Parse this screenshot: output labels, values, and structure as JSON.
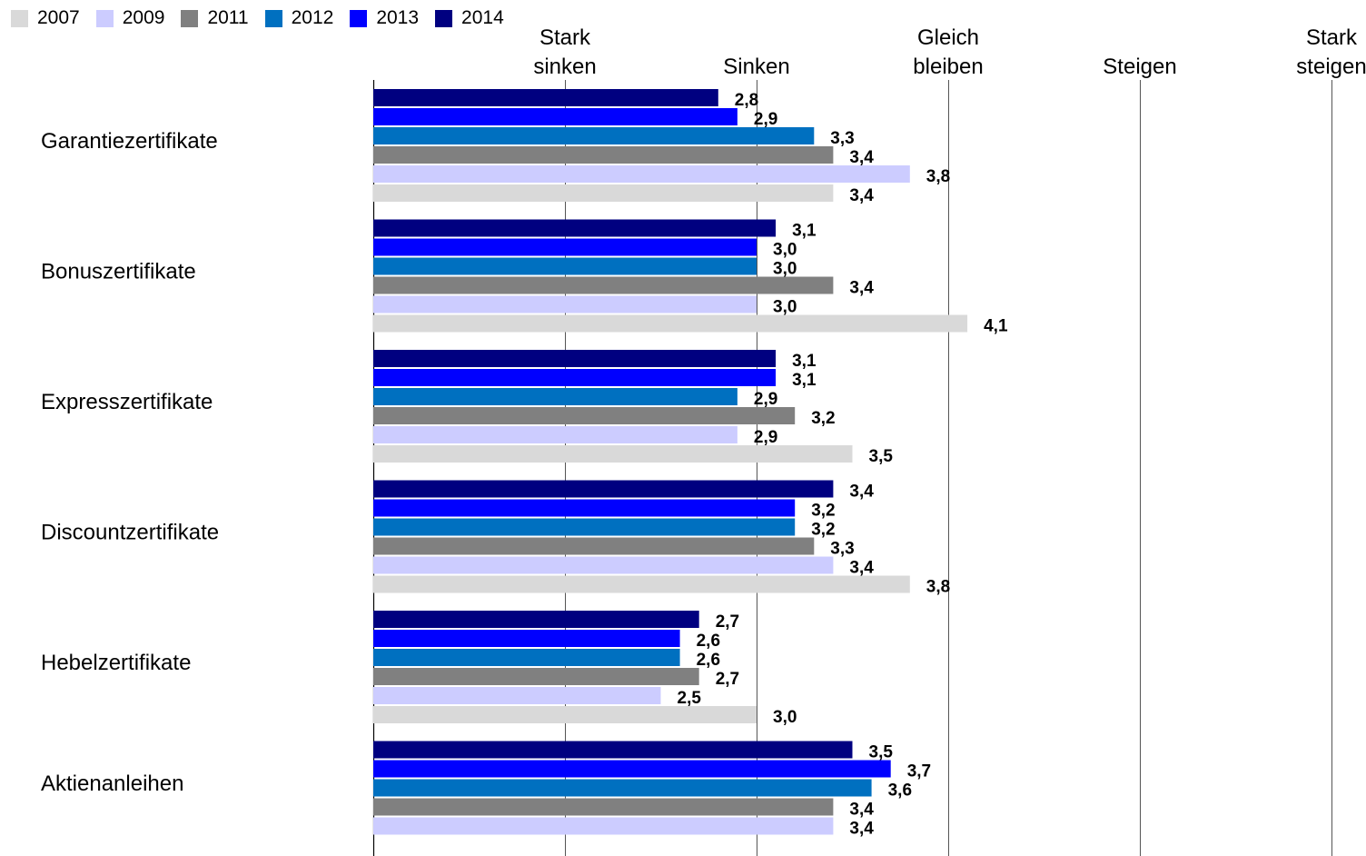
{
  "chart_data": {
    "type": "bar",
    "orientation": "horizontal",
    "title": "",
    "xlabel": "",
    "ylabel": "",
    "xlim": [
      1,
      5
    ],
    "grid": true,
    "legend_position": "top-left",
    "x_tick_labels": [
      {
        "value": 1,
        "lines": [
          "",
          ""
        ]
      },
      {
        "value": 2,
        "lines": [
          "Stark",
          "sinken"
        ]
      },
      {
        "value": 3,
        "lines": [
          "",
          "Sinken"
        ]
      },
      {
        "value": 4,
        "lines": [
          "Gleich",
          "bleiben"
        ]
      },
      {
        "value": 5,
        "lines": [
          "",
          "Steigen"
        ]
      },
      {
        "value": 6,
        "lines": [
          "Stark",
          "steigen"
        ]
      }
    ],
    "categories": [
      "Garantiezertifikate",
      "Bonuszertifikate",
      "Expresszertifikate",
      "Discountzertifikate",
      "Hebelzertifikate",
      "Aktienanleihen"
    ],
    "series": [
      {
        "name": "2014",
        "color": "#000080",
        "values": [
          2.8,
          3.1,
          3.1,
          3.4,
          2.7,
          3.5
        ],
        "labels": [
          "2,8",
          "3,1",
          "3,1",
          "3,4",
          "2,7",
          "3,5"
        ]
      },
      {
        "name": "2013",
        "color": "#0000FF",
        "values": [
          2.9,
          3.0,
          3.1,
          3.2,
          2.6,
          3.7
        ],
        "labels": [
          "2,9",
          "3,0",
          "3,1",
          "3,2",
          "2,6",
          "3,7"
        ]
      },
      {
        "name": "2012",
        "color": "#0070C0",
        "values": [
          3.3,
          3.0,
          2.9,
          3.2,
          2.6,
          3.6
        ],
        "labels": [
          "3,3",
          "3,0",
          "2,9",
          "3,2",
          "2,6",
          "3,6"
        ]
      },
      {
        "name": "2011",
        "color": "#808080",
        "values": [
          3.4,
          3.4,
          3.2,
          3.3,
          2.7,
          3.4
        ],
        "labels": [
          "3,4",
          "3,4",
          "3,2",
          "3,3",
          "2,7",
          "3,4"
        ]
      },
      {
        "name": "2009",
        "color": "#CCCCFF",
        "values": [
          3.8,
          3.0,
          2.9,
          3.4,
          2.5,
          3.4
        ],
        "labels": [
          "3,8",
          "3,0",
          "2,9",
          "3,4",
          "2,5",
          "3,4"
        ]
      },
      {
        "name": "2007",
        "color": "#D9D9D9",
        "values": [
          3.4,
          4.1,
          3.5,
          3.8,
          3.0,
          null
        ],
        "labels": [
          "3,4",
          "4,1",
          "3,5",
          "3,8",
          "3,0",
          ""
        ]
      }
    ],
    "legend": [
      {
        "name": "2007",
        "color": "#D9D9D9"
      },
      {
        "name": "2009",
        "color": "#CCCCFF"
      },
      {
        "name": "2011",
        "color": "#808080"
      },
      {
        "name": "2012",
        "color": "#0070C0"
      },
      {
        "name": "2013",
        "color": "#0000FF"
      },
      {
        "name": "2014",
        "color": "#000080"
      }
    ]
  }
}
